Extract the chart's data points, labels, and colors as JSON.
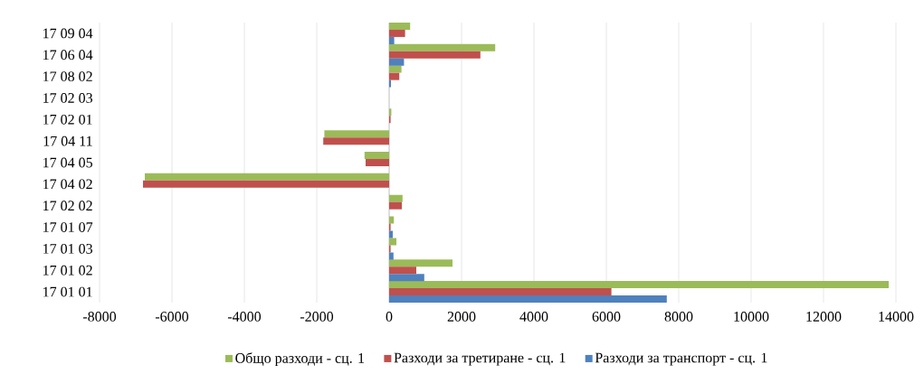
{
  "chart_data": {
    "type": "bar",
    "orientation": "horizontal",
    "categories": [
      "17 09 04",
      "17 06 04",
      "17 08 02",
      "17 02 03",
      "17 02 01",
      "17 04 11",
      "17 04 05",
      "17 04 02",
      "17 02 02",
      "17 01 07",
      "17 01 03",
      "17 01 02",
      "17 01 01"
    ],
    "series": [
      {
        "name": "Общо разходи - сц. 1",
        "color": "#9bbb59",
        "values": [
          580,
          2930,
          340,
          0,
          60,
          -1790,
          -680,
          -6750,
          370,
          130,
          200,
          1750,
          13800
        ]
      },
      {
        "name": "Разходи за третиране - сц. 1",
        "color": "#c0504d",
        "values": [
          440,
          2520,
          280,
          0,
          40,
          -1820,
          -650,
          -6800,
          350,
          40,
          40,
          750,
          6140
        ]
      },
      {
        "name": "Разходи за транспорт - сц. 1",
        "color": "#4f81bd",
        "values": [
          140,
          410,
          50,
          0,
          0,
          0,
          0,
          0,
          0,
          100,
          120,
          970,
          7670
        ]
      }
    ],
    "xlim": [
      -8000,
      14000
    ],
    "xticks": [
      -8000,
      -6000,
      -4000,
      -2000,
      0,
      2000,
      4000,
      6000,
      8000,
      10000,
      12000,
      14000
    ],
    "grid": "x",
    "legend": "bottom"
  }
}
